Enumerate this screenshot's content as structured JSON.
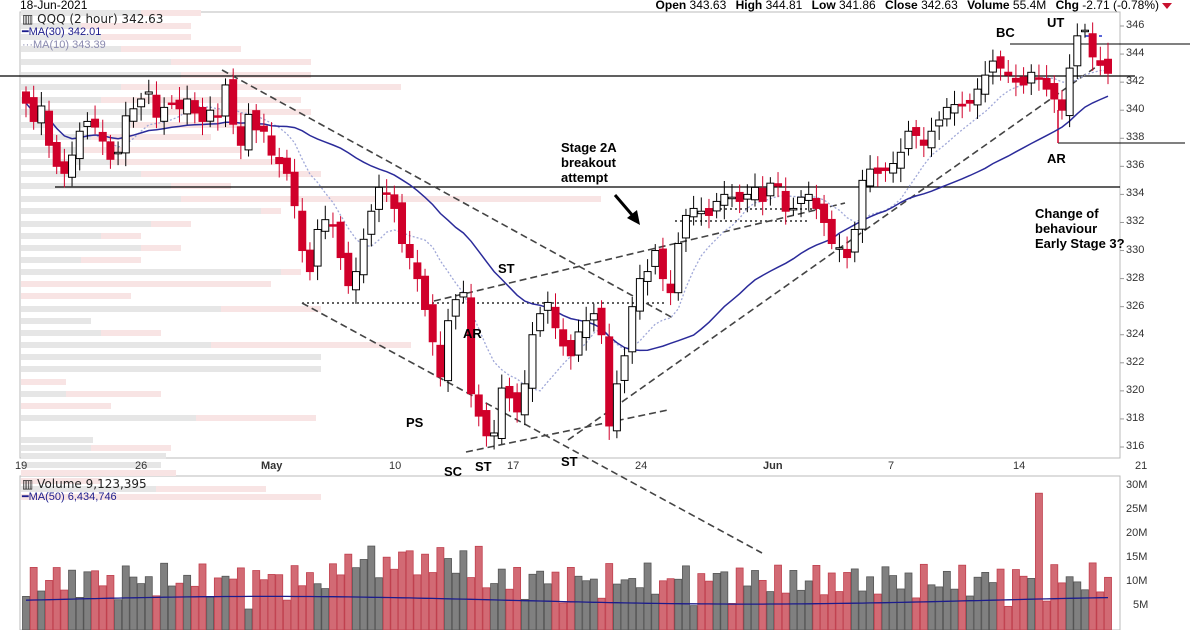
{
  "header": {
    "date": "18-Jun-2021",
    "open_label": "Open",
    "open": "343.63",
    "high_label": "High",
    "high": "344.81",
    "low_label": "Low",
    "low": "341.86",
    "close_label": "Close",
    "close": "342.63",
    "volume_label": "Volume",
    "volume": "55.4M",
    "chg_label": "Chg",
    "chg": "-2.71 (-0.78%)",
    "chg_direction": "down"
  },
  "legend": {
    "title": "QQQ (2 hour) 342.63",
    "ma30": "MA(30) 342.01",
    "ma10": "MA(10) 343.39"
  },
  "volume_legend": {
    "title": "Volume 9,123,395",
    "ma50": "MA(50) 6,434,746"
  },
  "annotations": {
    "stage2a": [
      "Stage 2A",
      "breakout",
      "attempt"
    ],
    "change": [
      "Change of",
      "behaviour",
      "Early Stage 3?"
    ],
    "ps": "PS",
    "sc": "SC",
    "ar1": "AR",
    "st1": "ST",
    "st2": "ST",
    "st3": "ST",
    "bc": "BC",
    "ut": "UT",
    "ar2": "AR"
  },
  "colors": {
    "up": "#000000",
    "down": "#d0002a",
    "ma30": "#2b2b9a",
    "ma10": "#a0a8d8",
    "vol_up": "#808080",
    "vol_down": "#d26a74",
    "vbp_gray": "#e6e6e6",
    "vbp_pink": "#f8e4e4"
  },
  "chart_data": [
    {
      "type": "candlestick",
      "title": "QQQ (2 hour)",
      "x_ticks": [
        "19",
        "26",
        "May",
        "10",
        "17",
        "24",
        "Jun",
        "7",
        "14",
        "21"
      ],
      "y_ticks": [
        316,
        318,
        320,
        322,
        324,
        326,
        328,
        330,
        332,
        334,
        336,
        338,
        340,
        342,
        344,
        346
      ],
      "ylim": [
        315.5,
        346.8
      ],
      "last": {
        "open": 343.63,
        "high": 344.81,
        "low": 341.86,
        "close": 342.63
      },
      "ma30_last": 342.01,
      "ma10_last": 343.39,
      "horizontal_levels": [
        342.9,
        334.3,
        344.6,
        342.3,
        337.6
      ],
      "annotations": [
        "PS",
        "SC",
        "AR",
        "ST",
        "ST",
        "ST",
        "Stage 2A breakout attempt",
        "BC",
        "UT",
        "AR",
        "Change of behaviour Early Stage 3?"
      ],
      "closes_approx": [
        340.5,
        339.2,
        340.3,
        337.5,
        336.0,
        335.5,
        336.8,
        338.5,
        339.2,
        338.8,
        337.8,
        336.5,
        337.0,
        339.6,
        340.1,
        340.8,
        341.3,
        339.5,
        340.2,
        340.5,
        340.1,
        340.8,
        339.8,
        339.2,
        340.0,
        339.5,
        341.8,
        339.0,
        337.5,
        339.7,
        338.6,
        338.5,
        336.8,
        336.2,
        335.5,
        333.2,
        330.0,
        328.5,
        331.5,
        332.2,
        331.8,
        329.5,
        327.5,
        328.5,
        330.8,
        332.8,
        334.5,
        334.0,
        333.0,
        330.5,
        329.5,
        328.0,
        325.8,
        323.5,
        321.0,
        325.0,
        326.5,
        327.0,
        319.8,
        318.2,
        316.8,
        317.0,
        320.2,
        319.5,
        318.5,
        320.5,
        324.0,
        325.5,
        326.3,
        324.5,
        323.2,
        322.5,
        324.2,
        325.0,
        325.5,
        324.0,
        317.5,
        320.5,
        322.5,
        326.0,
        328.0,
        328.5,
        330.0,
        328.0,
        327.0,
        330.5,
        332.5,
        333.0,
        332.8,
        332.5,
        333.5,
        334.0,
        333.8,
        333.5,
        334.0,
        334.5,
        333.5,
        334.8,
        334.6,
        332.8,
        333.0,
        333.8,
        334.0,
        333.0,
        332.0,
        330.5,
        330.2,
        329.5,
        331.5,
        335.0,
        335.8,
        335.5,
        335.7,
        336.2,
        337.0,
        338.5,
        338.2,
        337.5,
        338.5,
        339.3,
        340.2,
        340.4,
        340.3,
        340.5,
        341.5,
        342.5,
        343.5,
        343.0,
        342.5,
        342.0,
        341.8,
        342.7,
        342.3,
        341.5,
        340.8,
        340.0,
        343.0,
        345.3,
        345.7,
        343.8,
        343.2,
        342.6
      ]
    },
    {
      "type": "bar",
      "title": "Volume",
      "y_ticks": [
        "5M",
        "10M",
        "15M",
        "20M",
        "25M",
        "30M"
      ],
      "ylim": [
        0,
        30
      ],
      "unit": "M",
      "last_volume": 9123395,
      "ma50_last": 6434746,
      "peak_volume_approx_m": 28.5
    }
  ]
}
